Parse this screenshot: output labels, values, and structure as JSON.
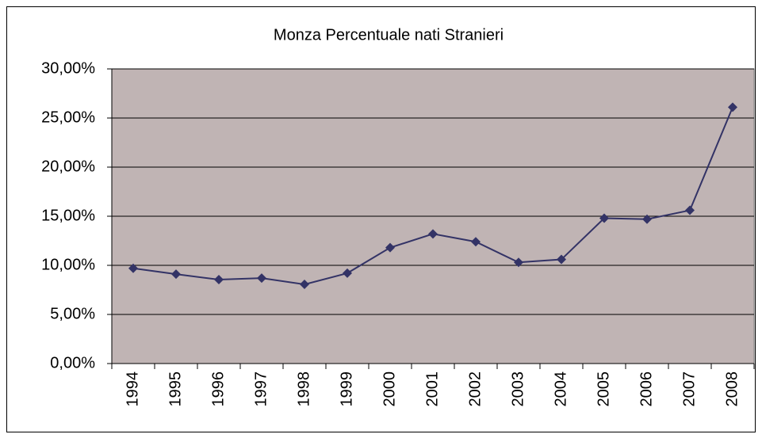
{
  "chart_data": {
    "type": "line",
    "title": "Monza Percentuale nati Stranieri",
    "categories": [
      "1994",
      "1995",
      "1996",
      "1997",
      "1998",
      "1999",
      "2000",
      "2001",
      "2002",
      "2003",
      "2004",
      "2005",
      "2006",
      "2007",
      "2008"
    ],
    "series": [
      {
        "name": "Monza",
        "color": "#333366",
        "values": [
          9.7,
          9.1,
          8.55,
          8.7,
          8.06,
          9.2,
          11.8,
          13.2,
          12.4,
          10.3,
          10.6,
          14.8,
          14.7,
          15.6,
          26.1
        ]
      }
    ],
    "ylim": [
      0,
      30
    ],
    "yticks": [
      {
        "value": 0,
        "label": "0,00%"
      },
      {
        "value": 5,
        "label": "5,00%"
      },
      {
        "value": 10,
        "label": "10,00%"
      },
      {
        "value": 15,
        "label": "15,00%"
      },
      {
        "value": 20,
        "label": "20,00%"
      },
      {
        "value": 25,
        "label": "25,00%"
      },
      {
        "value": 30,
        "label": "30,00%"
      }
    ],
    "grid": true,
    "plot_background": "#c0b4b4"
  }
}
